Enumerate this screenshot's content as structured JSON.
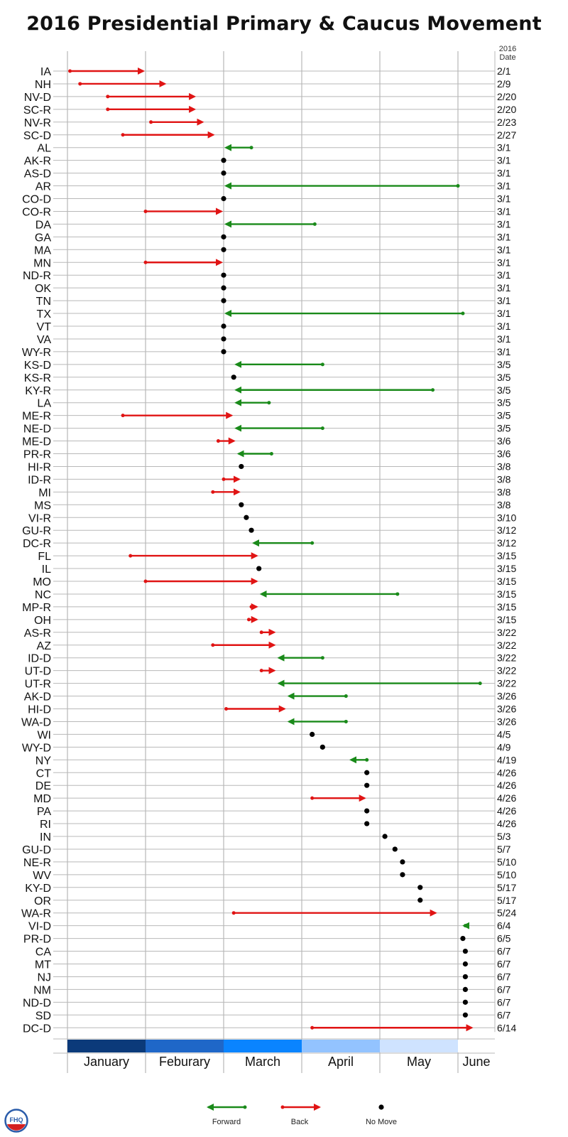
{
  "title": "2016 Presidential Primary & Caucus Movement",
  "date_header": [
    "2016",
    "Date"
  ],
  "logo_text": "FHQ",
  "colors": {
    "forward": "#1a8a1a",
    "back": "#e01414",
    "nomove": "#000000",
    "grid": "#b8b8b8",
    "months": [
      "#0b3a7a",
      "#1f67c8",
      "#0a84ff",
      "#93c3ff",
      "#cfe3ff",
      "#ffffff"
    ]
  },
  "chart_data": {
    "type": "arrow-dot",
    "x_axis": "2016 date",
    "months": [
      "January",
      "Feburary",
      "March",
      "April",
      "May",
      "June"
    ],
    "legend": [
      {
        "key": "forward",
        "label": "Forward"
      },
      {
        "key": "back",
        "label": "Back"
      },
      {
        "key": "nomove",
        "label": "No Move"
      }
    ],
    "rows": [
      {
        "label": "IA",
        "date": "2/1",
        "from": "1/2",
        "to": "2/1",
        "move": "back"
      },
      {
        "label": "NH",
        "date": "2/9",
        "from": "1/6",
        "to": "2/9",
        "move": "back"
      },
      {
        "label": "NV-D",
        "date": "2/20",
        "from": "1/17",
        "to": "2/20",
        "move": "back"
      },
      {
        "label": "SC-R",
        "date": "2/20",
        "from": "1/17",
        "to": "2/20",
        "move": "back"
      },
      {
        "label": "NV-R",
        "date": "2/23",
        "from": "2/3",
        "to": "2/23",
        "move": "back"
      },
      {
        "label": "SC-D",
        "date": "2/27",
        "from": "1/23",
        "to": "2/27",
        "move": "back"
      },
      {
        "label": "AL",
        "date": "3/1",
        "from": "3/12",
        "to": "3/1",
        "move": "forward"
      },
      {
        "label": "AK-R",
        "date": "3/1",
        "from": "3/1",
        "to": "3/1",
        "move": "none"
      },
      {
        "label": "AS-D",
        "date": "3/1",
        "from": "3/1",
        "to": "3/1",
        "move": "none"
      },
      {
        "label": "AR",
        "date": "3/1",
        "from": "6/1",
        "to": "3/1",
        "move": "forward"
      },
      {
        "label": "CO-D",
        "date": "3/1",
        "from": "3/1",
        "to": "3/1",
        "move": "none"
      },
      {
        "label": "CO-R",
        "date": "3/1",
        "from": "2/1",
        "to": "3/1",
        "move": "back"
      },
      {
        "label": "DA",
        "date": "3/1",
        "from": "4/6",
        "to": "3/1",
        "move": "forward"
      },
      {
        "label": "GA",
        "date": "3/1",
        "from": "3/1",
        "to": "3/1",
        "move": "none"
      },
      {
        "label": "MA",
        "date": "3/1",
        "from": "3/1",
        "to": "3/1",
        "move": "none"
      },
      {
        "label": "MN",
        "date": "3/1",
        "from": "2/1",
        "to": "3/1",
        "move": "back"
      },
      {
        "label": "ND-R",
        "date": "3/1",
        "from": "3/1",
        "to": "3/1",
        "move": "none"
      },
      {
        "label": "OK",
        "date": "3/1",
        "from": "3/1",
        "to": "3/1",
        "move": "none"
      },
      {
        "label": "TN",
        "date": "3/1",
        "from": "3/1",
        "to": "3/1",
        "move": "none"
      },
      {
        "label": "TX",
        "date": "3/1",
        "from": "6/5",
        "to": "3/1",
        "move": "forward"
      },
      {
        "label": "VT",
        "date": "3/1",
        "from": "3/1",
        "to": "3/1",
        "move": "none"
      },
      {
        "label": "VA",
        "date": "3/1",
        "from": "3/1",
        "to": "3/1",
        "move": "none"
      },
      {
        "label": "WY-R",
        "date": "3/1",
        "from": "3/1",
        "to": "3/1",
        "move": "none"
      },
      {
        "label": "KS-D",
        "date": "3/5",
        "from": "4/9",
        "to": "3/5",
        "move": "forward"
      },
      {
        "label": "KS-R",
        "date": "3/5",
        "from": "3/5",
        "to": "3/5",
        "move": "none"
      },
      {
        "label": "KY-R",
        "date": "3/5",
        "from": "5/22",
        "to": "3/5",
        "move": "forward"
      },
      {
        "label": "LA",
        "date": "3/5",
        "from": "3/19",
        "to": "3/5",
        "move": "forward"
      },
      {
        "label": "ME-R",
        "date": "3/5",
        "from": "1/23",
        "to": "3/5",
        "move": "back"
      },
      {
        "label": "NE-D",
        "date": "3/5",
        "from": "4/9",
        "to": "3/5",
        "move": "forward"
      },
      {
        "label": "ME-D",
        "date": "3/6",
        "from": "2/28",
        "to": "3/6",
        "move": "back"
      },
      {
        "label": "PR-R",
        "date": "3/6",
        "from": "3/20",
        "to": "3/6",
        "move": "forward"
      },
      {
        "label": "HI-R",
        "date": "3/8",
        "from": "3/8",
        "to": "3/8",
        "move": "none"
      },
      {
        "label": "ID-R",
        "date": "3/8",
        "from": "3/1",
        "to": "3/8",
        "move": "back"
      },
      {
        "label": "MI",
        "date": "3/8",
        "from": "2/26",
        "to": "3/8",
        "move": "back"
      },
      {
        "label": "MS",
        "date": "3/8",
        "from": "3/8",
        "to": "3/8",
        "move": "none"
      },
      {
        "label": "VI-R",
        "date": "3/10",
        "from": "3/10",
        "to": "3/10",
        "move": "none"
      },
      {
        "label": "GU-R",
        "date": "3/12",
        "from": "3/12",
        "to": "3/12",
        "move": "none"
      },
      {
        "label": "DC-R",
        "date": "3/12",
        "from": "4/5",
        "to": "3/12",
        "move": "forward"
      },
      {
        "label": "FL",
        "date": "3/15",
        "from": "1/26",
        "to": "3/15",
        "move": "back"
      },
      {
        "label": "IL",
        "date": "3/15",
        "from": "3/15",
        "to": "3/15",
        "move": "none"
      },
      {
        "label": "MO",
        "date": "3/15",
        "from": "2/1",
        "to": "3/15",
        "move": "back"
      },
      {
        "label": "NC",
        "date": "3/15",
        "from": "5/8",
        "to": "3/15",
        "move": "forward"
      },
      {
        "label": "MP-R",
        "date": "3/15",
        "from": "3/12",
        "to": "3/15",
        "move": "back"
      },
      {
        "label": "OH",
        "date": "3/15",
        "from": "3/11",
        "to": "3/15",
        "move": "back"
      },
      {
        "label": "AS-R",
        "date": "3/22",
        "from": "3/16",
        "to": "3/22",
        "move": "back"
      },
      {
        "label": "AZ",
        "date": "3/22",
        "from": "2/26",
        "to": "3/22",
        "move": "back"
      },
      {
        "label": "ID-D",
        "date": "3/22",
        "from": "4/9",
        "to": "3/22",
        "move": "forward"
      },
      {
        "label": "UT-D",
        "date": "3/22",
        "from": "3/16",
        "to": "3/22",
        "move": "back"
      },
      {
        "label": "UT-R",
        "date": "3/22",
        "from": "6/19",
        "to": "3/22",
        "move": "forward"
      },
      {
        "label": "AK-D",
        "date": "3/26",
        "from": "4/18",
        "to": "3/26",
        "move": "forward"
      },
      {
        "label": "HI-D",
        "date": "3/26",
        "from": "3/2",
        "to": "3/26",
        "move": "back"
      },
      {
        "label": "WA-D",
        "date": "3/26",
        "from": "4/18",
        "to": "3/26",
        "move": "forward"
      },
      {
        "label": "WI",
        "date": "4/5",
        "from": "4/5",
        "to": "4/5",
        "move": "none"
      },
      {
        "label": "WY-D",
        "date": "4/9",
        "from": "4/9",
        "to": "4/9",
        "move": "none"
      },
      {
        "label": "NY",
        "date": "4/19",
        "from": "4/26",
        "to": "4/19",
        "move": "forward"
      },
      {
        "label": "CT",
        "date": "4/26",
        "from": "4/26",
        "to": "4/26",
        "move": "none"
      },
      {
        "label": "DE",
        "date": "4/26",
        "from": "4/26",
        "to": "4/26",
        "move": "none"
      },
      {
        "label": "MD",
        "date": "4/26",
        "from": "4/5",
        "to": "4/26",
        "move": "back"
      },
      {
        "label": "PA",
        "date": "4/26",
        "from": "4/26",
        "to": "4/26",
        "move": "none"
      },
      {
        "label": "RI",
        "date": "4/26",
        "from": "4/26",
        "to": "4/26",
        "move": "none"
      },
      {
        "label": "IN",
        "date": "5/3",
        "from": "5/3",
        "to": "5/3",
        "move": "none"
      },
      {
        "label": "GU-D",
        "date": "5/7",
        "from": "5/7",
        "to": "5/7",
        "move": "none"
      },
      {
        "label": "NE-R",
        "date": "5/10",
        "from": "5/10",
        "to": "5/10",
        "move": "none"
      },
      {
        "label": "WV",
        "date": "5/10",
        "from": "5/10",
        "to": "5/10",
        "move": "none"
      },
      {
        "label": "KY-D",
        "date": "5/17",
        "from": "5/17",
        "to": "5/17",
        "move": "none"
      },
      {
        "label": "OR",
        "date": "5/17",
        "from": "5/17",
        "to": "5/17",
        "move": "none"
      },
      {
        "label": "WA-R",
        "date": "5/24",
        "from": "3/5",
        "to": "5/24",
        "move": "back"
      },
      {
        "label": "VI-D",
        "date": "6/4",
        "from": "6/7",
        "to": "6/4",
        "move": "forward"
      },
      {
        "label": "PR-D",
        "date": "6/5",
        "from": "6/5",
        "to": "6/5",
        "move": "none"
      },
      {
        "label": "CA",
        "date": "6/7",
        "from": "6/7",
        "to": "6/7",
        "move": "none"
      },
      {
        "label": "MT",
        "date": "6/7",
        "from": "6/7",
        "to": "6/7",
        "move": "none"
      },
      {
        "label": "NJ",
        "date": "6/7",
        "from": "6/7",
        "to": "6/7",
        "move": "none"
      },
      {
        "label": "NM",
        "date": "6/7",
        "from": "6/7",
        "to": "6/7",
        "move": "none"
      },
      {
        "label": "ND-D",
        "date": "6/7",
        "from": "6/7",
        "to": "6/7",
        "move": "none"
      },
      {
        "label": "SD",
        "date": "6/7",
        "from": "6/7",
        "to": "6/7",
        "move": "none"
      },
      {
        "label": "DC-D",
        "date": "6/14",
        "from": "4/5",
        "to": "6/14",
        "move": "back"
      }
    ]
  }
}
